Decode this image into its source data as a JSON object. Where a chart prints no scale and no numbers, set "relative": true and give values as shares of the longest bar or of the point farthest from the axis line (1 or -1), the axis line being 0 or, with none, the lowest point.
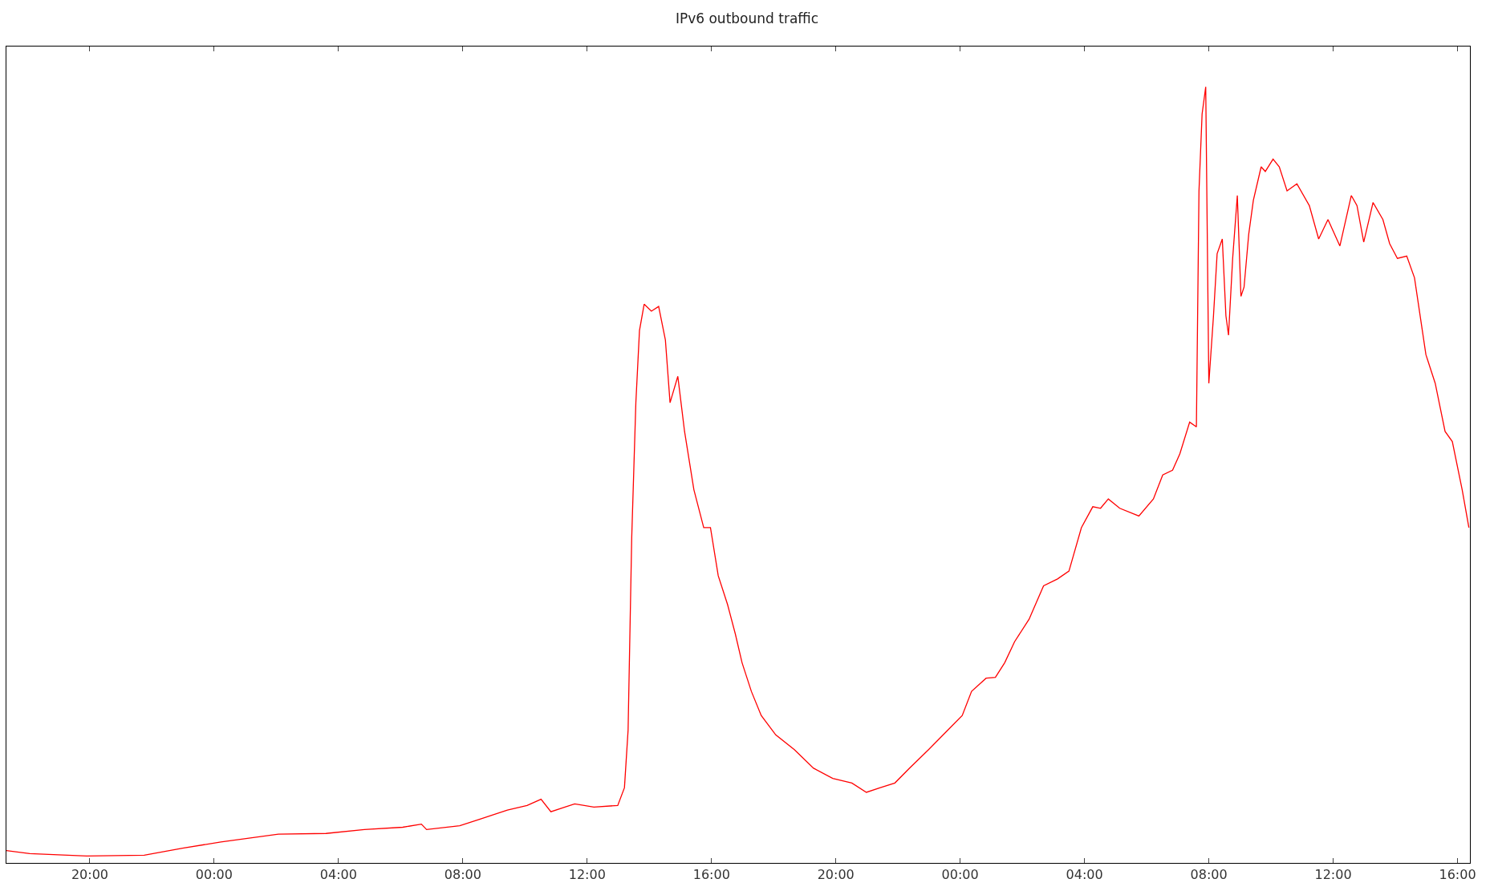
{
  "chart_data": {
    "type": "line",
    "title": "IPv6 outbound traffic",
    "relative": true,
    "marker": "none",
    "line_style": "solid",
    "xlim": [
      "--01-01T17:19",
      "--01-03T16:24"
    ],
    "xticks": [
      {
        "value": "--01-01T20:00",
        "label": "20:00"
      },
      {
        "value": "--01-02T00:00",
        "label": "00:00"
      },
      {
        "value": "--01-02T04:00",
        "label": "04:00"
      },
      {
        "value": "--01-02T08:00",
        "label": "08:00"
      },
      {
        "value": "--01-02T12:00",
        "label": "12:00"
      },
      {
        "value": "--01-02T16:00",
        "label": "16:00"
      },
      {
        "value": "--01-02T20:00",
        "label": "20:00"
      },
      {
        "value": "--01-03T00:00",
        "label": "00:00"
      },
      {
        "value": "--01-03T04:00",
        "label": "04:00"
      },
      {
        "value": "--01-03T08:00",
        "label": "08:00"
      },
      {
        "value": "--01-03T12:00",
        "label": "12:00"
      },
      {
        "value": "--01-03T16:00",
        "label": "16:00"
      }
    ],
    "series": [
      {
        "color": "#ff0000",
        "x": [
          "--01-01T17:19",
          "--01-01T18:04",
          "--01-01T19:54",
          "--01-01T21:45",
          "--01-01T22:59",
          "--01-02T00:13",
          "--01-02T02:04",
          "--01-02T03:36",
          "--01-02T04:50",
          "--01-02T06:04",
          "--01-02T06:40",
          "--01-02T06:50",
          "--01-02T07:54",
          "--01-02T08:31",
          "--01-02T09:26",
          "--01-02T10:04",
          "--01-02T10:31",
          "--01-02T10:50",
          "--01-02T11:17",
          "--01-02T11:36",
          "--01-02T12:13",
          "--01-02T12:59",
          "--01-02T13:12",
          "--01-02T13:19",
          "--01-02T13:26",
          "--01-02T13:34",
          "--01-02T13:41",
          "--01-02T13:50",
          "--01-02T14:04",
          "--01-02T14:18",
          "--01-02T14:31",
          "--01-02T14:40",
          "--01-02T14:55",
          "--01-02T15:08",
          "--01-02T15:26",
          "--01-02T15:45",
          "--01-02T15:58",
          "--01-02T16:13",
          "--01-02T16:31",
          "--01-02T16:46",
          "--01-02T16:59",
          "--01-02T17:17",
          "--01-02T17:36",
          "--01-02T18:04",
          "--01-02T18:40",
          "--01-02T19:17",
          "--01-02T19:54",
          "--01-02T20:31",
          "--01-02T20:59",
          "--01-02T21:26",
          "--01-02T21:54",
          "--01-02T22:22",
          "--01-02T22:59",
          "--01-02T23:36",
          "--01-03T00:04",
          "--01-03T00:22",
          "--01-03T00:50",
          "--01-03T01:08",
          "--01-03T01:26",
          "--01-03T01:45",
          "--01-03T02:13",
          "--01-03T02:41",
          "--01-03T03:08",
          "--01-03T03:30",
          "--01-03T03:54",
          "--01-03T04:16",
          "--01-03T04:31",
          "--01-03T04:46",
          "--01-03T05:08",
          "--01-03T05:45",
          "--01-03T06:13",
          "--01-03T06:31",
          "--01-03T06:50",
          "--01-03T07:04",
          "--01-03T07:23",
          "--01-03T07:36",
          "--01-03T07:41",
          "--01-03T07:47",
          "--01-03T07:54",
          "--01-03T08:00",
          "--01-03T08:09",
          "--01-03T08:16",
          "--01-03T08:26",
          "--01-03T08:33",
          "--01-03T08:38",
          "--01-03T08:46",
          "--01-03T08:55",
          "--01-03T09:02",
          "--01-03T09:08",
          "--01-03T09:17",
          "--01-03T09:26",
          "--01-03T09:41",
          "--01-03T09:49",
          "--01-03T10:04",
          "--01-03T10:16",
          "--01-03T10:31",
          "--01-03T10:50",
          "--01-03T11:14",
          "--01-03T11:32",
          "--01-03T11:50",
          "--01-03T12:13",
          "--01-03T12:35",
          "--01-03T12:46",
          "--01-03T12:59",
          "--01-03T13:17",
          "--01-03T13:36",
          "--01-03T13:49",
          "--01-03T14:04",
          "--01-03T14:22",
          "--01-03T14:37",
          "--01-03T14:59",
          "--01-03T15:17",
          "--01-03T15:36",
          "--01-03T15:50",
          "--01-03T16:09",
          "--01-03T16:22"
        ],
        "values": [
          0.016,
          0.012,
          0.009,
          0.01,
          0.019,
          0.027,
          0.037,
          0.038,
          0.043,
          0.046,
          0.05,
          0.043,
          0.048,
          0.056,
          0.068,
          0.074,
          0.082,
          0.066,
          0.072,
          0.076,
          0.072,
          0.074,
          0.097,
          0.171,
          0.419,
          0.593,
          0.686,
          0.72,
          0.711,
          0.717,
          0.674,
          0.593,
          0.627,
          0.556,
          0.481,
          0.432,
          0.432,
          0.37,
          0.333,
          0.295,
          0.258,
          0.221,
          0.19,
          0.165,
          0.146,
          0.122,
          0.109,
          0.103,
          0.091,
          0.097,
          0.103,
          0.122,
          0.146,
          0.171,
          0.19,
          0.221,
          0.238,
          0.239,
          0.258,
          0.285,
          0.314,
          0.357,
          0.366,
          0.376,
          0.432,
          0.459,
          0.457,
          0.469,
          0.457,
          0.447,
          0.469,
          0.5,
          0.506,
          0.527,
          0.568,
          0.562,
          0.866,
          0.965,
          1,
          0.618,
          0.705,
          0.785,
          0.804,
          0.705,
          0.68,
          0.779,
          0.86,
          0.73,
          0.742,
          0.81,
          0.854,
          0.897,
          0.891,
          0.907,
          0.897,
          0.866,
          0.875,
          0.847,
          0.804,
          0.829,
          0.795,
          0.86,
          0.847,
          0.8,
          0.851,
          0.829,
          0.798,
          0.779,
          0.782,
          0.754,
          0.655,
          0.618,
          0.556,
          0.543,
          0.481,
          0.432
        ]
      }
    ]
  }
}
